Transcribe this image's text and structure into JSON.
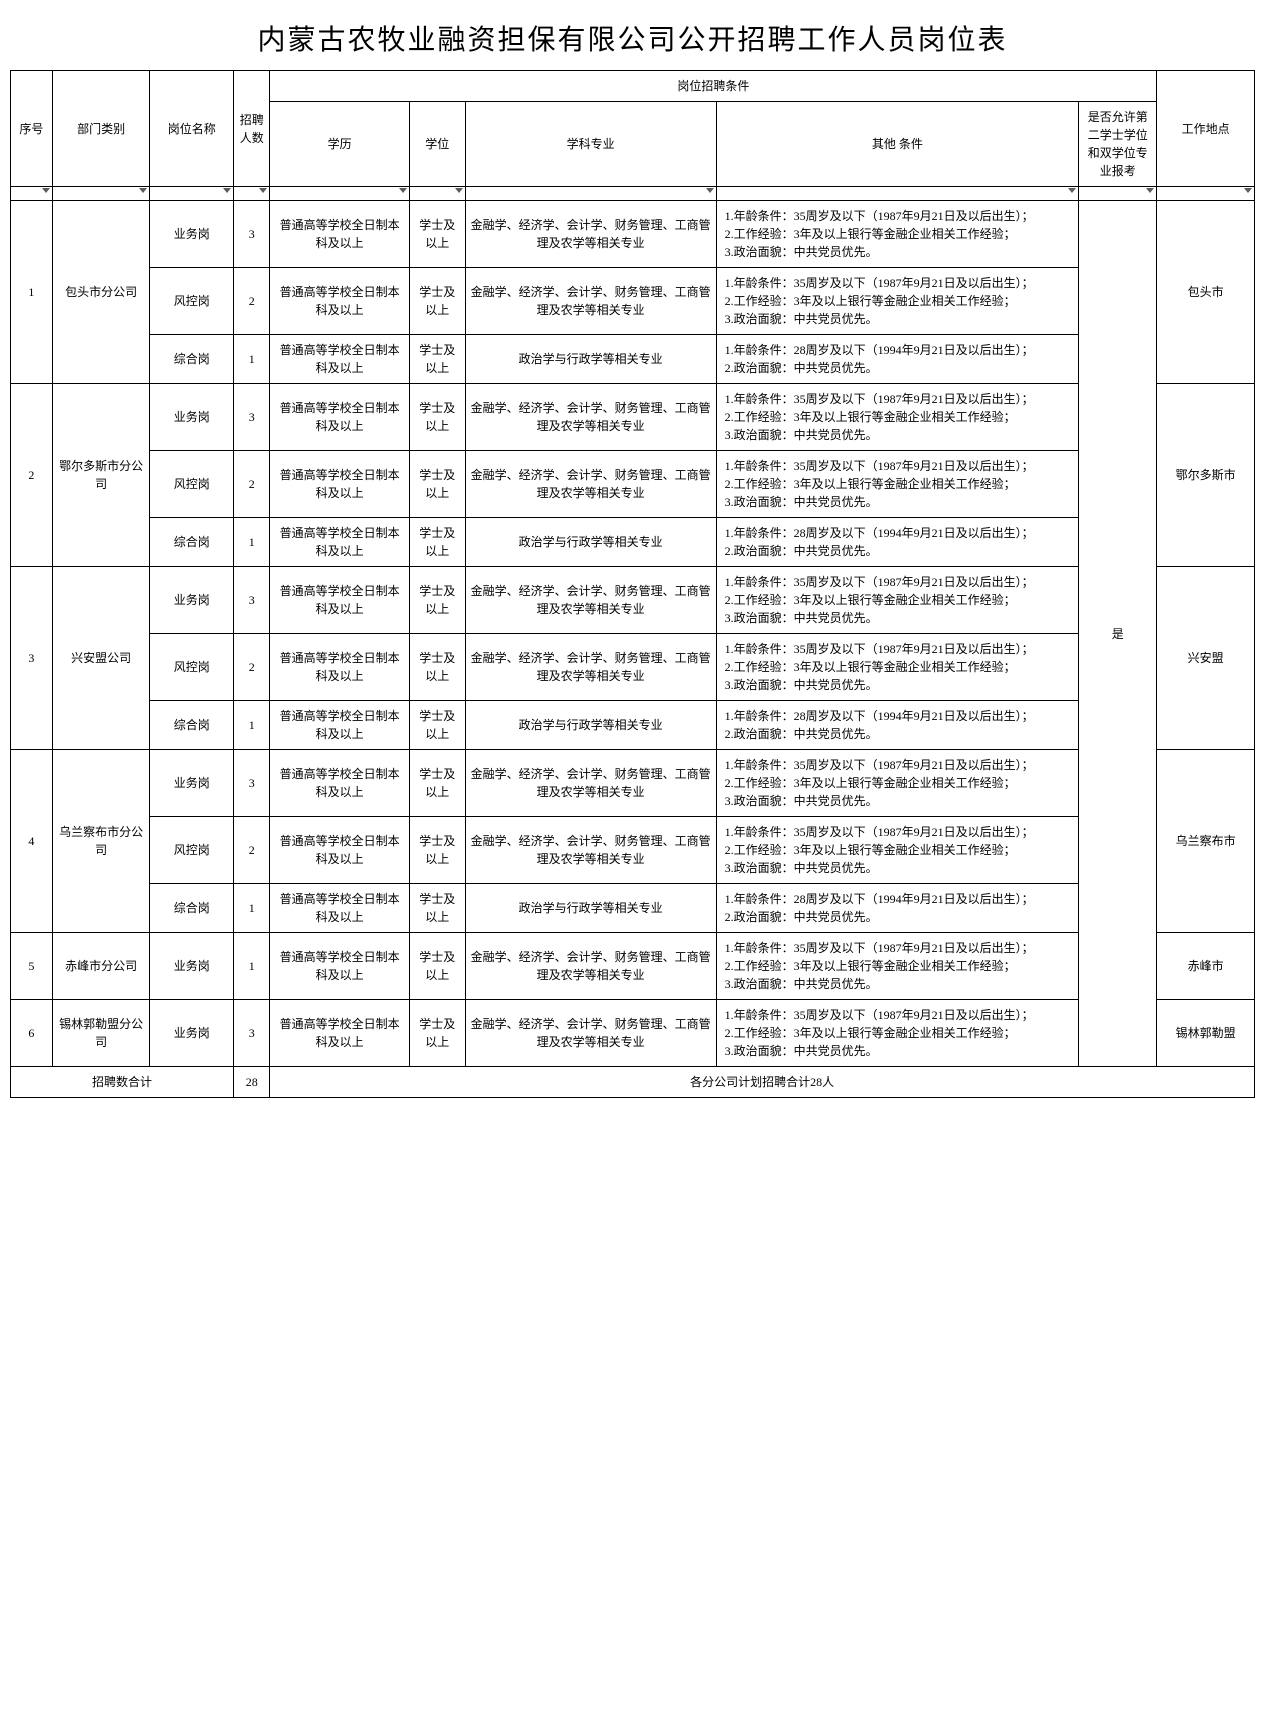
{
  "title": "内蒙古农牧业融资担保有限公司公开招聘工作人员岗位表",
  "headers": {
    "seq": "序号",
    "dept": "部门类别",
    "post": "岗位名称",
    "num": "招聘人数",
    "cond_group": "岗位招聘条件",
    "edu": "学历",
    "degree": "学位",
    "major": "学科专业",
    "other": "其他\n条件",
    "allow": "是否允许第二学士学位和双学位专业报考",
    "loc": "工作地点"
  },
  "common": {
    "edu": "普通高等学校全日制本科及以上",
    "degree": "学士及以上",
    "major_biz": "金融学、经济学、会计学、财务管理、工商管理及农学等相关专业",
    "major_gen": "政治学与行政学等相关专业",
    "other_35": "1.年龄条件：35周岁及以下（1987年9月21日及以后出生）；\n2.工作经验：3年及以上银行等金融企业相关工作经验；\n3.政治面貌：中共党员优先。",
    "other_28": "1.年龄条件：28周岁及以下（1994年9月21日及以后出生）；\n2.政治面貌：中共党员优先。",
    "allow_val": "是"
  },
  "posts": {
    "biz": "业务岗",
    "risk": "风控岗",
    "gen": "综合岗"
  },
  "groups": [
    {
      "seq": "1",
      "dept": "包头市分公司",
      "loc": "包头市",
      "rows": [
        {
          "post": "biz",
          "n": "3",
          "major": "biz",
          "other": "35"
        },
        {
          "post": "risk",
          "n": "2",
          "major": "biz",
          "other": "35"
        },
        {
          "post": "gen",
          "n": "1",
          "major": "gen",
          "other": "28"
        }
      ]
    },
    {
      "seq": "2",
      "dept": "鄂尔多斯市分公司",
      "loc": "鄂尔多斯市",
      "rows": [
        {
          "post": "biz",
          "n": "3",
          "major": "biz",
          "other": "35"
        },
        {
          "post": "risk",
          "n": "2",
          "major": "biz",
          "other": "35"
        },
        {
          "post": "gen",
          "n": "1",
          "major": "gen",
          "other": "28"
        }
      ]
    },
    {
      "seq": "3",
      "dept": "兴安盟公司",
      "loc": "兴安盟",
      "rows": [
        {
          "post": "biz",
          "n": "3",
          "major": "biz",
          "other": "35"
        },
        {
          "post": "risk",
          "n": "2",
          "major": "biz",
          "other": "35"
        },
        {
          "post": "gen",
          "n": "1",
          "major": "gen",
          "other": "28"
        }
      ]
    },
    {
      "seq": "4",
      "dept": "乌兰察布市分公司",
      "loc": "乌兰察布市",
      "rows": [
        {
          "post": "biz",
          "n": "3",
          "major": "biz",
          "other": "35"
        },
        {
          "post": "risk",
          "n": "2",
          "major": "biz",
          "other": "35"
        },
        {
          "post": "gen",
          "n": "1",
          "major": "gen",
          "other": "28"
        }
      ]
    },
    {
      "seq": "5",
      "dept": "赤峰市分公司",
      "loc": "赤峰市",
      "rows": [
        {
          "post": "biz",
          "n": "1",
          "major": "biz",
          "other": "35"
        }
      ]
    },
    {
      "seq": "6",
      "dept": "锡林郭勒盟分公司",
      "loc": "锡林郭勒盟",
      "rows": [
        {
          "post": "biz",
          "n": "3",
          "major": "biz",
          "other": "35"
        }
      ]
    }
  ],
  "footer": {
    "label": "招聘数合计",
    "total": "28",
    "note": "各分公司计划招聘合计28人"
  }
}
